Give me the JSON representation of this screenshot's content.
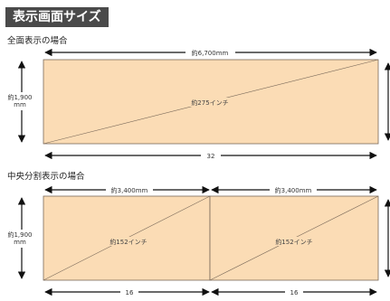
{
  "header": {
    "title": "表示画面サイズ"
  },
  "sections": [
    {
      "label": "全面表示の場合",
      "width_label": "約6,700mm",
      "height_label_line1": "約1,900",
      "height_label_line2": "mm",
      "screens": [
        {
          "diagonal_label": "約275インチ"
        }
      ],
      "bottom_labels": [
        "32"
      ]
    },
    {
      "label": "中央分割表示の場合",
      "width_labels": [
        "約3,400mm",
        "約3,400mm"
      ],
      "height_label_line1": "約1,900",
      "height_label_line2": "mm",
      "screens": [
        {
          "diagonal_label": "約152インチ"
        },
        {
          "diagonal_label": "約152インチ"
        }
      ],
      "bottom_labels": [
        "16",
        "16"
      ]
    }
  ],
  "colors": {
    "screen_fill": "#fbdcb5",
    "screen_border": "#7a6a5a",
    "title_bg": "#4a4a4a",
    "arrow": "#111111"
  }
}
